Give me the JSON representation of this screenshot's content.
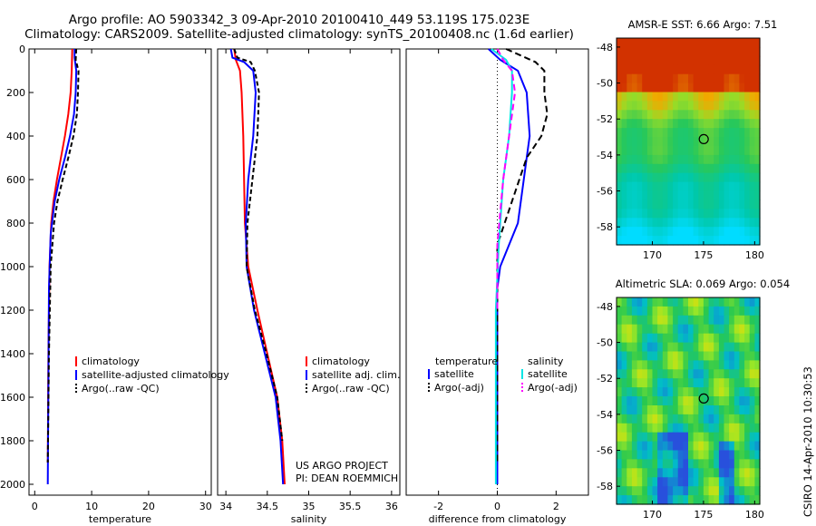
{
  "header": {
    "title_line1": "Argo profile: AO 5903342_3 09-Apr-2010 20100410_449 53.119S 175.023E",
    "title_line2": "Climatology: CARS2009. Satellite-adjusted climatology: synTS_20100408.nc (1.6d earlier)"
  },
  "colors": {
    "climatology": "#ff0000",
    "satellite": "#0000ff",
    "argo": "#000000",
    "salinity_sat": "#00e5e5",
    "salinity_argo": "#ff00ff"
  },
  "chart_data": [
    {
      "id": "temperature",
      "type": "line",
      "xlabel": "temperature",
      "xlim": [
        -1,
        31
      ],
      "ylim": [
        2050,
        0
      ],
      "xticks": [
        0,
        10,
        20,
        30
      ],
      "yticks": [
        0,
        200,
        400,
        600,
        800,
        1000,
        1200,
        1400,
        1600,
        1800,
        2000
      ],
      "legend": [
        "climatology",
        "satellite-adjusted climatology",
        "Argo(..raw -QC)"
      ],
      "series": [
        {
          "name": "climatology",
          "color": "#ff0000",
          "dash": "",
          "x": [
            6.6,
            6.5,
            6.3,
            5.9,
            5.3,
            4.6,
            3.9,
            3.3,
            2.9,
            2.6,
            2.4,
            2.3
          ],
          "y": [
            0,
            100,
            200,
            300,
            400,
            500,
            600,
            700,
            800,
            1000,
            1400,
            1900
          ]
        },
        {
          "name": "satellite-adjusted climatology",
          "color": "#0000ff",
          "dash": "",
          "x": [
            7.0,
            7.0,
            7.3,
            7.2,
            6.9,
            6.2,
            5.3,
            4.3,
            3.5,
            2.8,
            2.5,
            2.4,
            2.3
          ],
          "y": [
            0,
            40,
            100,
            200,
            300,
            400,
            500,
            600,
            700,
            850,
            1100,
            1500,
            2000
          ]
        },
        {
          "name": "Argo(..raw -QC)",
          "color": "#000000",
          "dash": "5,3",
          "x": [
            7.3,
            7.2,
            7.7,
            7.6,
            7.4,
            6.8,
            5.9,
            4.9,
            4.0,
            3.4,
            2.8,
            2.5,
            2.3
          ],
          "y": [
            0,
            50,
            100,
            200,
            300,
            400,
            500,
            600,
            700,
            800,
            1000,
            1400,
            1900
          ]
        }
      ]
    },
    {
      "id": "salinity",
      "type": "line",
      "xlabel": "salinity",
      "xlim": [
        33.9,
        36.1
      ],
      "ylim": [
        2050,
        0
      ],
      "xticks": [
        34,
        34.5,
        35,
        35.5,
        36
      ],
      "yticks": [],
      "legend": [
        "climatology",
        "satellite adj. clim.",
        "Argo(..raw -QC)"
      ],
      "series": [
        {
          "name": "climatology",
          "color": "#ff0000",
          "dash": "",
          "x": [
            34.1,
            34.12,
            34.17,
            34.19,
            34.21,
            34.22,
            34.23,
            34.27,
            34.38,
            34.5,
            34.62,
            34.68,
            34.71
          ],
          "y": [
            0,
            50,
            100,
            200,
            400,
            600,
            800,
            1000,
            1200,
            1400,
            1600,
            1800,
            2000
          ]
        },
        {
          "name": "satellite adj. clim.",
          "color": "#0000ff",
          "dash": "",
          "x": [
            34.06,
            34.08,
            34.22,
            34.33,
            34.36,
            34.33,
            34.27,
            34.24,
            34.25,
            34.34,
            34.47,
            34.6,
            34.66,
            34.69
          ],
          "y": [
            0,
            40,
            60,
            100,
            200,
            400,
            600,
            800,
            1000,
            1200,
            1400,
            1600,
            1800,
            2000
          ]
        },
        {
          "name": "Argo(..raw -QC)",
          "color": "#000000",
          "dash": "5,3",
          "x": [
            34.1,
            34.14,
            34.3,
            34.35,
            34.4,
            34.38,
            34.32,
            34.26,
            34.25,
            34.35,
            34.49,
            34.62,
            34.68
          ],
          "y": [
            0,
            40,
            60,
            100,
            200,
            400,
            600,
            800,
            1000,
            1200,
            1400,
            1600,
            1800
          ]
        }
      ],
      "annotation": [
        "US ARGO PROJECT",
        "PI: DEAN ROEMMICH"
      ]
    },
    {
      "id": "difference",
      "type": "line",
      "xlabel": "difference from climatology",
      "xlim": [
        -3.1,
        3.1
      ],
      "ylim": [
        2050,
        0
      ],
      "xticks": [
        -2,
        0,
        2
      ],
      "yticks": [],
      "legend_temperature": [
        "temperature",
        "satellite",
        "Argo(-adj)"
      ],
      "legend_salinity": [
        "salinity",
        "satellite",
        "Argo(-adj)"
      ],
      "series": [
        {
          "name": "temperature satellite",
          "color": "#0000ff",
          "dash": "",
          "x": [
            -0.3,
            0.1,
            0.7,
            1.0,
            1.1,
            1.0,
            0.9,
            0.7,
            0.1,
            0.0,
            0.0,
            0.0
          ],
          "y": [
            0,
            50,
            100,
            200,
            400,
            500,
            600,
            800,
            1000,
            1100,
            1400,
            2000
          ]
        },
        {
          "name": "temperature Argo(-adj)",
          "color": "#000000",
          "dash": "7,4",
          "x": [
            0.3,
            1.3,
            1.6,
            1.6,
            1.7,
            1.5,
            1.0,
            0.5,
            0.0,
            0.0,
            0.0,
            0.0
          ],
          "y": [
            0,
            60,
            100,
            200,
            300,
            400,
            500,
            700,
            900,
            1100,
            1400,
            1900
          ]
        },
        {
          "name": "salinity satellite",
          "color": "#00e5e5",
          "dash": "",
          "x": [
            -0.2,
            0.3,
            0.5,
            0.5,
            0.4,
            0.2,
            0.05,
            -0.05,
            -0.05
          ],
          "y": [
            0,
            50,
            100,
            200,
            400,
            600,
            900,
            1200,
            2000
          ]
        },
        {
          "name": "salinity Argo(-adj)",
          "color": "#ff00ff",
          "dash": "7,4",
          "x": [
            0.0,
            0.2,
            0.5,
            0.6,
            0.4,
            0.2,
            0.0,
            0.0
          ],
          "y": [
            0,
            50,
            100,
            200,
            400,
            600,
            900,
            1200
          ]
        }
      ]
    },
    {
      "id": "amsr-sst",
      "type": "heatmap",
      "title": "AMSR-E SST: 6.66 Argo: 7.51",
      "xlim": [
        166.5,
        180.5
      ],
      "ylim": [
        -59,
        -47.5
      ],
      "xticks": [
        170,
        175,
        180
      ],
      "yticks": [
        -48,
        -50,
        -52,
        -54,
        -56,
        -58
      ],
      "marker": {
        "lon": 175.023,
        "lat": -53.119
      }
    },
    {
      "id": "altimetric-sla",
      "type": "heatmap",
      "title": "Altimetric SLA: 0.069 Argo: 0.054",
      "xlim": [
        166.5,
        180.5
      ],
      "ylim": [
        -59,
        -47.5
      ],
      "xticks": [
        170,
        175,
        180
      ],
      "yticks": [
        -48,
        -50,
        -52,
        -54,
        -56,
        -58
      ],
      "marker": {
        "lon": 175.023,
        "lat": -53.119
      }
    }
  ],
  "footer": {
    "stamp": "CSIRO 14-Apr-2010 10:30:53"
  }
}
